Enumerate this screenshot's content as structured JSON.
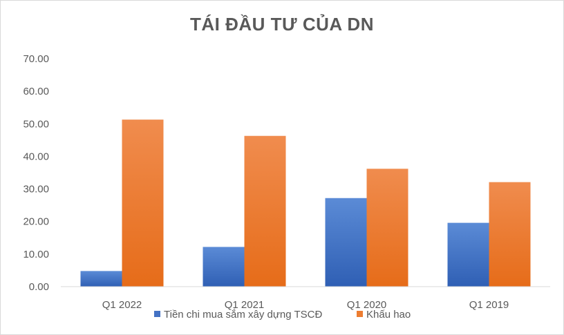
{
  "chart_data": {
    "type": "bar",
    "title": "TÁI ĐẦU TƯ CỦA DN",
    "categories": [
      "Q1 2022",
      "Q1 2021",
      "Q1 2020",
      "Q1 2019"
    ],
    "series": [
      {
        "name": "Tiền chi mua sắm xây dựng TSCĐ",
        "values": [
          4.8,
          12.2,
          27.2,
          19.6
        ],
        "color": "#4472c4"
      },
      {
        "name": "Khấu hao",
        "values": [
          51.3,
          46.3,
          36.2,
          32.1
        ],
        "color": "#ed7d31"
      }
    ],
    "ylim": [
      0,
      70
    ],
    "yticks": [
      "0.00",
      "10.00",
      "20.00",
      "30.00",
      "40.00",
      "50.00",
      "60.00",
      "70.00"
    ],
    "grid": false,
    "legend_position": "bottom"
  }
}
